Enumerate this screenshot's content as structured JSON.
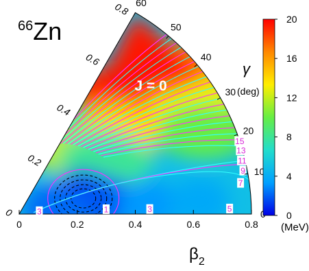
{
  "nucleus": {
    "mass": "66",
    "symbol": "Zn"
  },
  "state_label": "J = 0",
  "gamma_axis": {
    "symbol": "γ",
    "unit": "(deg)",
    "ticks": [
      "0",
      "10",
      "20",
      "30",
      "40",
      "50",
      "60"
    ]
  },
  "beta_axis": {
    "label": "β",
    "subscript": "2",
    "ticks": [
      "0",
      "0.2",
      "0.4",
      "0.6",
      "0.8"
    ]
  },
  "colorbar": {
    "ticks": [
      "0",
      "4",
      "8",
      "12",
      "16",
      "20"
    ],
    "unit": "(MeV)",
    "stops": [
      "#0000e6",
      "#00a0ff",
      "#22ddcc",
      "#66ee44",
      "#ffee00",
      "#ff8800",
      "#ff0000"
    ]
  },
  "chart_data": {
    "type": "heatmap",
    "description": "potential energy surface in the beta-gamma plane",
    "z_range": [
      0,
      20
    ],
    "z_unit": "MeV",
    "beta_range": [
      0,
      0.8
    ],
    "gamma_range_deg": [
      0,
      60
    ],
    "minimum": {
      "beta": 0.23,
      "gamma_deg": 16
    },
    "contour_labels": [
      {
        "text": "1",
        "beta": 0.3,
        "gamma_deg": 3.2
      },
      {
        "text": "3",
        "beta": 0.45,
        "gamma_deg": 2.2
      },
      {
        "text": "3",
        "beta": 0.07,
        "gamma_deg": 8.0
      },
      {
        "text": "5",
        "beta": 0.725,
        "gamma_deg": 1.5
      },
      {
        "text": "7",
        "beta": 0.77,
        "gamma_deg": 8.0
      },
      {
        "text": "9",
        "beta": 0.785,
        "gamma_deg": 11.0
      },
      {
        "text": "11",
        "beta": 0.79,
        "gamma_deg": 13.5
      },
      {
        "text": "13",
        "beta": 0.795,
        "gamma_deg": 16.0
      },
      {
        "text": "15",
        "beta": 0.8,
        "gamma_deg": 18.3
      }
    ]
  }
}
